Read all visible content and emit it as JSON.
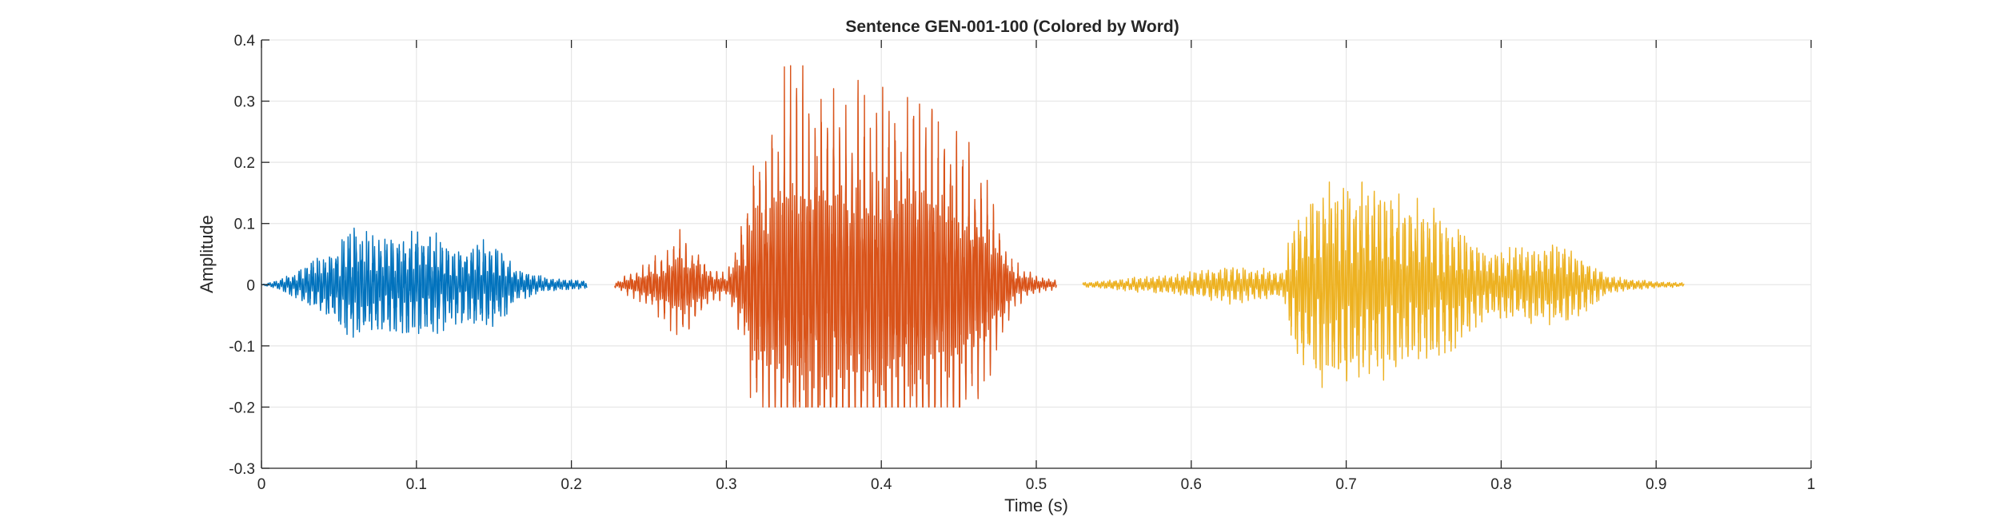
{
  "chart_data": {
    "type": "line",
    "title": "Sentence GEN-001-100 (Colored by Word)",
    "xlabel": "Time (s)",
    "ylabel": "Amplitude",
    "xlim": [
      0,
      1
    ],
    "ylim": [
      -0.3,
      0.4
    ],
    "xticks": [
      "0",
      "0.1",
      "0.2",
      "0.3",
      "0.4",
      "0.5",
      "0.6",
      "0.7",
      "0.8",
      "0.9",
      "1"
    ],
    "xtick_values": [
      0,
      0.1,
      0.2,
      0.3,
      0.4,
      0.5,
      0.6,
      0.7,
      0.8,
      0.9,
      1
    ],
    "yticks": [
      "-0.3",
      "-0.2",
      "-0.1",
      "0",
      "0.1",
      "0.2",
      "0.3",
      "0.4"
    ],
    "ytick_values": [
      -0.3,
      -0.2,
      -0.1,
      0,
      0.1,
      0.2,
      0.3,
      0.4
    ],
    "grid": true,
    "legend": "none",
    "series": [
      {
        "color": "#0072BD",
        "t_start": 0.0,
        "t_end": 0.21,
        "envelope": [
          [
            0.0,
            0.0
          ],
          [
            0.012,
            0.01
          ],
          [
            0.025,
            0.03
          ],
          [
            0.045,
            0.07
          ],
          [
            0.06,
            0.11
          ],
          [
            0.075,
            0.09
          ],
          [
            0.095,
            0.1
          ],
          [
            0.11,
            0.1
          ],
          [
            0.125,
            0.07
          ],
          [
            0.145,
            0.08
          ],
          [
            0.155,
            0.07
          ],
          [
            0.165,
            0.03
          ],
          [
            0.185,
            0.012
          ],
          [
            0.21,
            0.008
          ]
        ],
        "peak_max": 0.12,
        "peak_min": -0.12
      },
      {
        "color": "#D95319",
        "t_start": 0.228,
        "t_end": 0.513,
        "envelope": [
          [
            0.228,
            0.005
          ],
          [
            0.245,
            0.03
          ],
          [
            0.26,
            0.06
          ],
          [
            0.27,
            0.09
          ],
          [
            0.28,
            0.07
          ],
          [
            0.29,
            0.03
          ],
          [
            0.3,
            0.02
          ],
          [
            0.31,
            0.1
          ],
          [
            0.32,
            0.25
          ],
          [
            0.34,
            0.34
          ],
          [
            0.355,
            0.36
          ],
          [
            0.38,
            0.34
          ],
          [
            0.41,
            0.33
          ],
          [
            0.43,
            0.32
          ],
          [
            0.45,
            0.26
          ],
          [
            0.465,
            0.2
          ],
          [
            0.475,
            0.12
          ],
          [
            0.485,
            0.04
          ],
          [
            0.5,
            0.015
          ],
          [
            0.513,
            0.008
          ]
        ],
        "peak_max": 0.36,
        "peak_min": -0.2
      },
      {
        "color": "#EDB120",
        "t_start": 0.53,
        "t_end": 0.918,
        "envelope": [
          [
            0.53,
            0.004
          ],
          [
            0.56,
            0.012
          ],
          [
            0.59,
            0.02
          ],
          [
            0.625,
            0.035
          ],
          [
            0.66,
            0.025
          ],
          [
            0.665,
            0.12
          ],
          [
            0.68,
            0.18
          ],
          [
            0.7,
            0.2
          ],
          [
            0.72,
            0.18
          ],
          [
            0.75,
            0.15
          ],
          [
            0.77,
            0.12
          ],
          [
            0.79,
            0.06
          ],
          [
            0.81,
            0.07
          ],
          [
            0.84,
            0.08
          ],
          [
            0.855,
            0.05
          ],
          [
            0.87,
            0.015
          ],
          [
            0.9,
            0.006
          ],
          [
            0.918,
            0.004
          ]
        ],
        "peak_max": 0.19,
        "peak_min": -0.25
      }
    ]
  }
}
